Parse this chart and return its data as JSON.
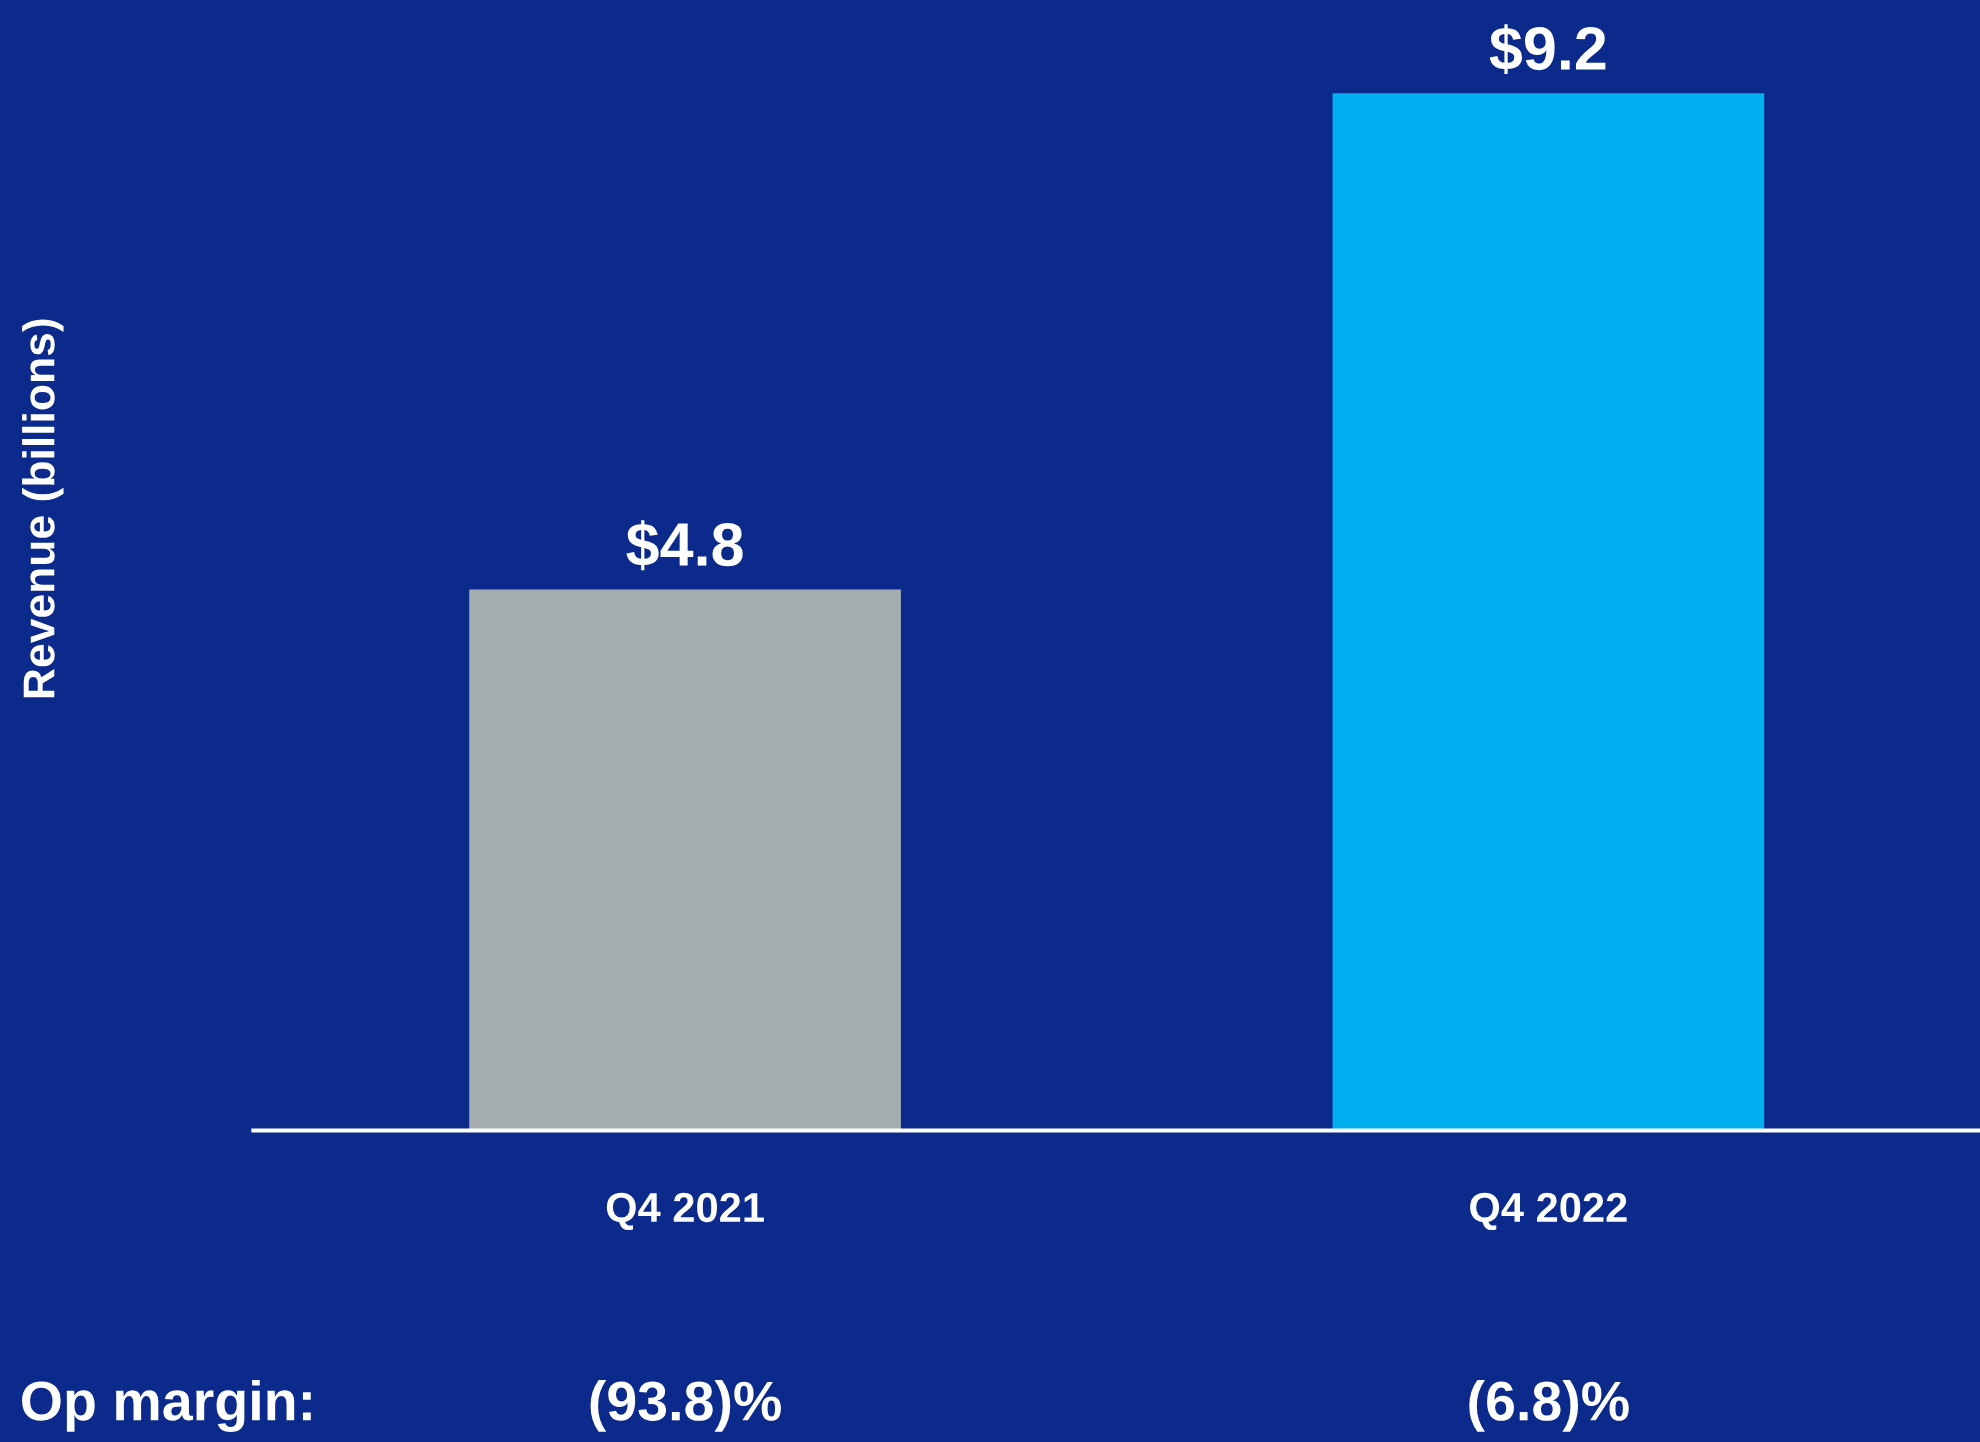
{
  "chart_data": {
    "type": "bar",
    "ylabel": "Revenue (billions)",
    "categories": [
      "Q4 2021",
      "Q4 2022"
    ],
    "values": [
      4.8,
      9.2
    ],
    "colors": [
      "#a6adb0",
      "#00b0f0"
    ],
    "value_labels": [
      "$4.8",
      "$9.2"
    ],
    "annotations": [
      "Op margin:",
      "(93.8)%",
      "(6.8)%"
    ],
    "grid": false,
    "legend": false
  }
}
